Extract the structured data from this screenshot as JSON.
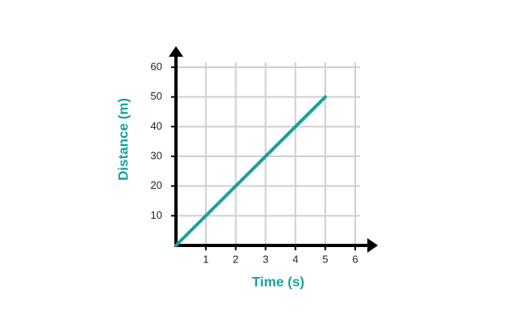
{
  "chart_data": {
    "type": "line",
    "x_label": "Time (s)",
    "y_label": "Distance (m)",
    "x": [
      0,
      5
    ],
    "values": [
      0,
      50
    ],
    "color": "#15a39a",
    "xlim": [
      0,
      6
    ],
    "ylim": [
      0,
      60
    ],
    "xticks": [
      1,
      2,
      3,
      4,
      5,
      6
    ],
    "yticks": [
      10,
      20,
      30,
      40,
      50,
      60
    ],
    "grid": true
  }
}
